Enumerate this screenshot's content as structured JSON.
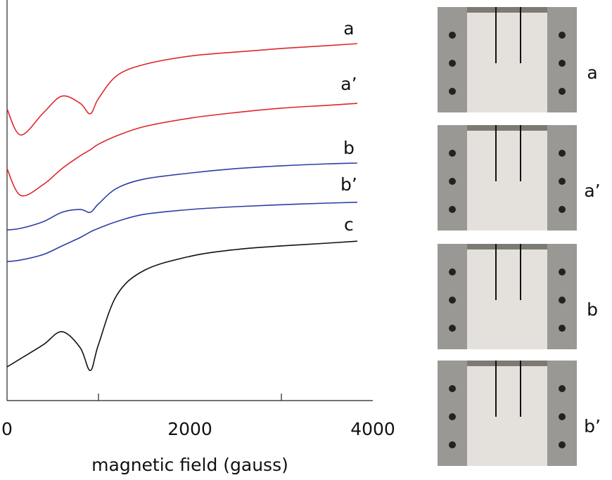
{
  "chart_data": {
    "type": "line",
    "x_label": "magnetic field (gauss)",
    "x": [
      0,
      150,
      400,
      600,
      800,
      910,
      1000,
      1200,
      1500,
      2000,
      2500,
      3000,
      3500,
      3830
    ],
    "xlim": [
      0,
      4000
    ],
    "xticks": [
      0,
      2000,
      4000
    ],
    "minor_xticks": [
      1000,
      3000
    ],
    "ylim": [
      0,
      100
    ],
    "series": [
      {
        "name": "a",
        "color": "#e0262b",
        "values": [
          72.8,
          66.3,
          71.9,
          76.0,
          74.2,
          71.6,
          75.4,
          81.1,
          83.9,
          86.0,
          87.0,
          87.9,
          88.6,
          89.1
        ]
      },
      {
        "name": "a’",
        "color": "#e0262b",
        "values": [
          57.9,
          51.2,
          54.0,
          57.9,
          61.1,
          62.6,
          64.0,
          66.1,
          68.4,
          70.5,
          71.9,
          73.0,
          73.7,
          74.2
        ]
      },
      {
        "name": "b",
        "color": "#2b3fa6",
        "values": [
          42.6,
          43.0,
          44.7,
          47.0,
          47.7,
          47.0,
          49.1,
          53.0,
          55.3,
          56.8,
          57.9,
          58.6,
          59.1,
          59.3
        ]
      },
      {
        "name": "b’",
        "color": "#2b3fa6",
        "values": [
          34.7,
          35.1,
          36.5,
          38.6,
          40.7,
          42.1,
          43.0,
          44.7,
          46.5,
          47.7,
          48.4,
          48.9,
          49.3,
          49.5
        ]
      },
      {
        "name": "c",
        "color": "#111111",
        "values": [
          8.4,
          10.5,
          14.0,
          17.2,
          13.2,
          7.5,
          14.0,
          26.3,
          32.5,
          36.0,
          37.7,
          38.6,
          39.3,
          39.8
        ]
      }
    ]
  },
  "photo_labels": [
    "a",
    "a’",
    "b",
    "b’"
  ]
}
